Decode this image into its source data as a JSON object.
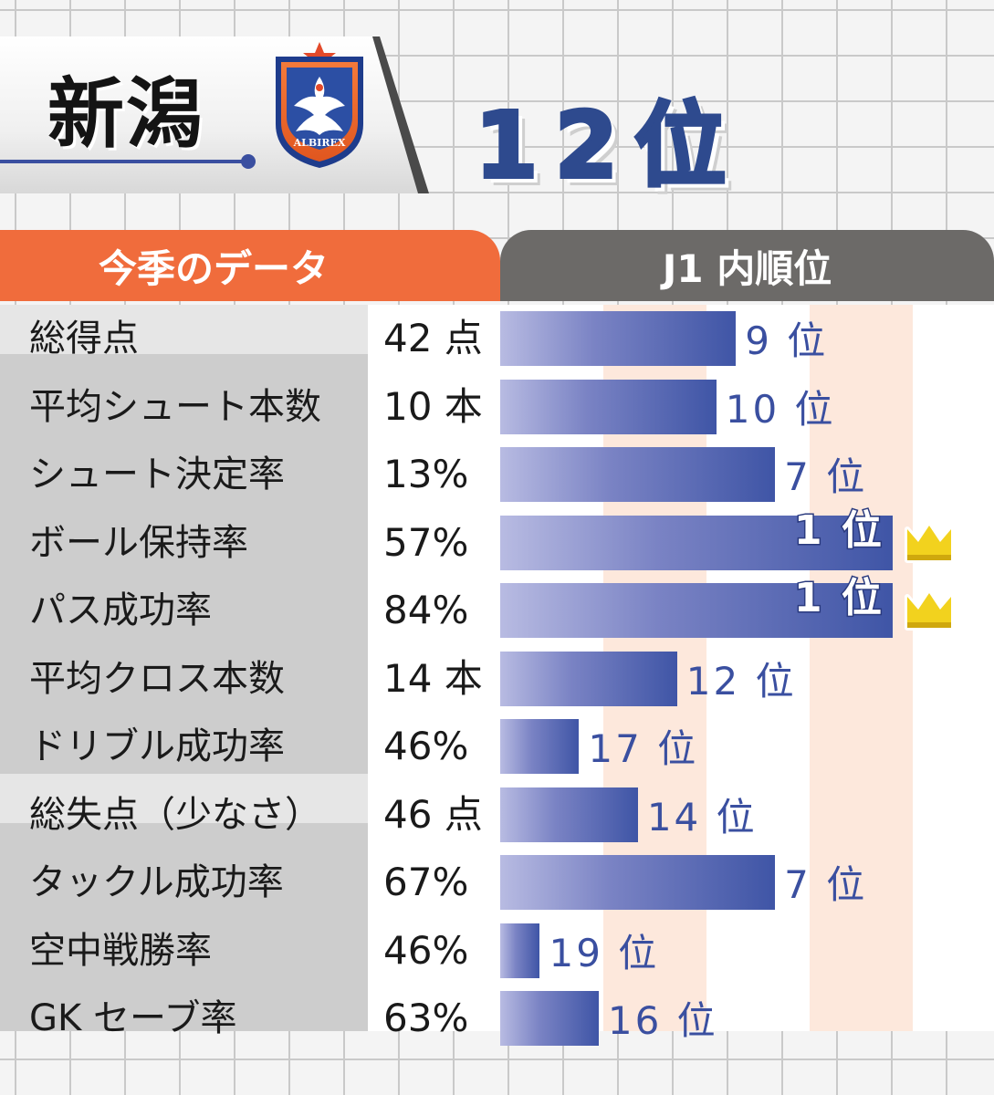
{
  "header": {
    "team_name": "新潟",
    "season_rank": "12位",
    "crest_text": "ALBIREX"
  },
  "table": {
    "stats_header": "今季のデータ",
    "rank_header": "J1 内順位"
  },
  "colors": {
    "orange_header": "#f06c3c",
    "gray_header": "#6c6a68",
    "bar_blue": "#3f55a6",
    "rank_text": "#3a4fa0",
    "crown_yellow": "#f2d21e"
  },
  "chart_data": {
    "type": "bar",
    "orientation": "horizontal",
    "note_scale": "bar length reflects league rank (1 = longest)",
    "rank_range": [
      1,
      20
    ],
    "categories": [
      "総得点",
      "平均シュート本数",
      "シュート決定率",
      "ボール保持率",
      "パス成功率",
      "平均クロス本数",
      "ドリブル成功率",
      "総失点（少なさ）",
      "タックル成功率",
      "空中戦勝率",
      "GK セーブ率"
    ],
    "values": [
      "42 点",
      "10 本",
      "13%",
      "57%",
      "84%",
      "14 本",
      "46%",
      "46 点",
      "67%",
      "46%",
      "63%"
    ],
    "ranks": [
      9,
      10,
      7,
      1,
      1,
      12,
      17,
      14,
      7,
      19,
      16
    ],
    "rank_labels": [
      "9 位",
      "10 位",
      "7 位",
      "1 位",
      "1 位",
      "12 位",
      "17 位",
      "14 位",
      "7 位",
      "19 位",
      "16 位"
    ],
    "crowned": [
      "ボール保持率",
      "パス成功率"
    ]
  }
}
